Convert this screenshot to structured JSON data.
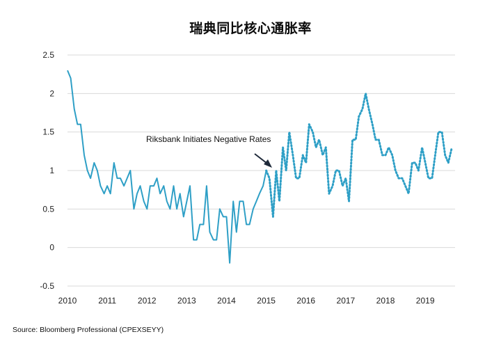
{
  "chart_data": {
    "type": "line",
    "title": "瑞典同比核心通胀率",
    "xlabel": "",
    "ylabel": "",
    "xlim": [
      2010.0,
      2019.75
    ],
    "ylim": [
      -0.5,
      2.5
    ],
    "grid": true,
    "x_ticks": [
      "2010",
      "2011",
      "2012",
      "2013",
      "2014",
      "2015",
      "2016",
      "2017",
      "2018",
      "2019"
    ],
    "y_ticks": [
      "2.5",
      "2",
      "1.5",
      "1",
      "0.5",
      "0",
      "-0.5"
    ],
    "annotation": "Riksbank Initiates Negative Rates",
    "colors": {
      "actual": "#2e9fc6",
      "dotted": "#2e9fc6",
      "grid": "#d9d9d9",
      "arrow": "#1f2a3a"
    },
    "series": [
      {
        "style": "solid",
        "points": [
          [
            2010.0,
            2.3
          ],
          [
            2010.08,
            2.2
          ],
          [
            2010.17,
            1.8
          ],
          [
            2010.25,
            1.6
          ],
          [
            2010.33,
            1.6
          ],
          [
            2010.42,
            1.2
          ],
          [
            2010.5,
            1.0
          ],
          [
            2010.58,
            0.9
          ],
          [
            2010.67,
            1.1
          ],
          [
            2010.75,
            1.0
          ],
          [
            2010.83,
            0.8
          ],
          [
            2010.92,
            0.7
          ],
          [
            2011.0,
            0.8
          ],
          [
            2011.08,
            0.7
          ],
          [
            2011.17,
            1.1
          ],
          [
            2011.25,
            0.9
          ],
          [
            2011.33,
            0.9
          ],
          [
            2011.42,
            0.8
          ],
          [
            2011.5,
            0.9
          ],
          [
            2011.58,
            1.0
          ],
          [
            2011.67,
            0.5
          ],
          [
            2011.75,
            0.7
          ],
          [
            2011.83,
            0.8
          ],
          [
            2011.92,
            0.6
          ],
          [
            2012.0,
            0.5
          ],
          [
            2012.08,
            0.8
          ],
          [
            2012.17,
            0.8
          ],
          [
            2012.25,
            0.9
          ],
          [
            2012.33,
            0.7
          ],
          [
            2012.42,
            0.8
          ],
          [
            2012.5,
            0.6
          ],
          [
            2012.58,
            0.5
          ],
          [
            2012.67,
            0.8
          ],
          [
            2012.75,
            0.5
          ],
          [
            2012.83,
            0.7
          ],
          [
            2012.92,
            0.4
          ],
          [
            2013.0,
            0.6
          ],
          [
            2013.08,
            0.8
          ],
          [
            2013.17,
            0.1
          ],
          [
            2013.25,
            0.1
          ],
          [
            2013.33,
            0.3
          ],
          [
            2013.42,
            0.3
          ],
          [
            2013.5,
            0.8
          ],
          [
            2013.58,
            0.2
          ],
          [
            2013.67,
            0.1
          ],
          [
            2013.75,
            0.1
          ],
          [
            2013.83,
            0.5
          ],
          [
            2013.92,
            0.4
          ],
          [
            2014.0,
            0.4
          ],
          [
            2014.08,
            -0.2
          ],
          [
            2014.17,
            0.6
          ],
          [
            2014.25,
            0.2
          ],
          [
            2014.33,
            0.6
          ],
          [
            2014.42,
            0.6
          ],
          [
            2014.5,
            0.3
          ],
          [
            2014.58,
            0.3
          ],
          [
            2014.67,
            0.5
          ],
          [
            2014.75,
            0.6
          ],
          [
            2014.83,
            0.7
          ],
          [
            2014.92,
            0.8
          ],
          [
            2015.0,
            1.0
          ]
        ]
      },
      {
        "style": "dotted",
        "points": [
          [
            2015.0,
            1.0
          ],
          [
            2015.08,
            0.9
          ],
          [
            2015.17,
            0.4
          ],
          [
            2015.25,
            1.0
          ],
          [
            2015.33,
            0.6
          ],
          [
            2015.42,
            1.3
          ],
          [
            2015.5,
            1.0
          ],
          [
            2015.58,
            1.5
          ],
          [
            2015.67,
            1.2
          ],
          [
            2015.75,
            0.9
          ],
          [
            2015.83,
            0.9
          ],
          [
            2015.92,
            1.2
          ],
          [
            2016.0,
            1.1
          ],
          [
            2016.08,
            1.6
          ],
          [
            2016.17,
            1.5
          ],
          [
            2016.25,
            1.3
          ],
          [
            2016.33,
            1.4
          ],
          [
            2016.42,
            1.2
          ],
          [
            2016.5,
            1.3
          ],
          [
            2016.58,
            0.7
          ],
          [
            2016.67,
            0.8
          ],
          [
            2016.75,
            1.0
          ],
          [
            2016.83,
            1.0
          ],
          [
            2016.92,
            0.8
          ],
          [
            2017.0,
            0.9
          ],
          [
            2017.08,
            0.6
          ],
          [
            2017.17,
            1.4
          ],
          [
            2017.25,
            1.4
          ],
          [
            2017.33,
            1.7
          ],
          [
            2017.42,
            1.8
          ],
          [
            2017.5,
            2.0
          ],
          [
            2017.58,
            1.8
          ],
          [
            2017.67,
            1.6
          ],
          [
            2017.75,
            1.4
          ],
          [
            2017.83,
            1.4
          ],
          [
            2017.92,
            1.2
          ],
          [
            2018.0,
            1.2
          ],
          [
            2018.08,
            1.3
          ],
          [
            2018.17,
            1.2
          ],
          [
            2018.25,
            1.0
          ],
          [
            2018.33,
            0.9
          ],
          [
            2018.42,
            0.9
          ],
          [
            2018.5,
            0.8
          ],
          [
            2018.58,
            0.7
          ],
          [
            2018.67,
            1.1
          ],
          [
            2018.75,
            1.1
          ],
          [
            2018.83,
            1.0
          ],
          [
            2018.92,
            1.3
          ],
          [
            2019.0,
            1.1
          ],
          [
            2019.08,
            0.9
          ],
          [
            2019.17,
            0.9
          ],
          [
            2019.25,
            1.2
          ],
          [
            2019.33,
            1.5
          ],
          [
            2019.42,
            1.5
          ],
          [
            2019.5,
            1.2
          ],
          [
            2019.58,
            1.1
          ],
          [
            2019.67,
            1.3
          ]
        ]
      }
    ]
  },
  "source": "Source: Bloomberg Professional (CPEXSEYY)"
}
